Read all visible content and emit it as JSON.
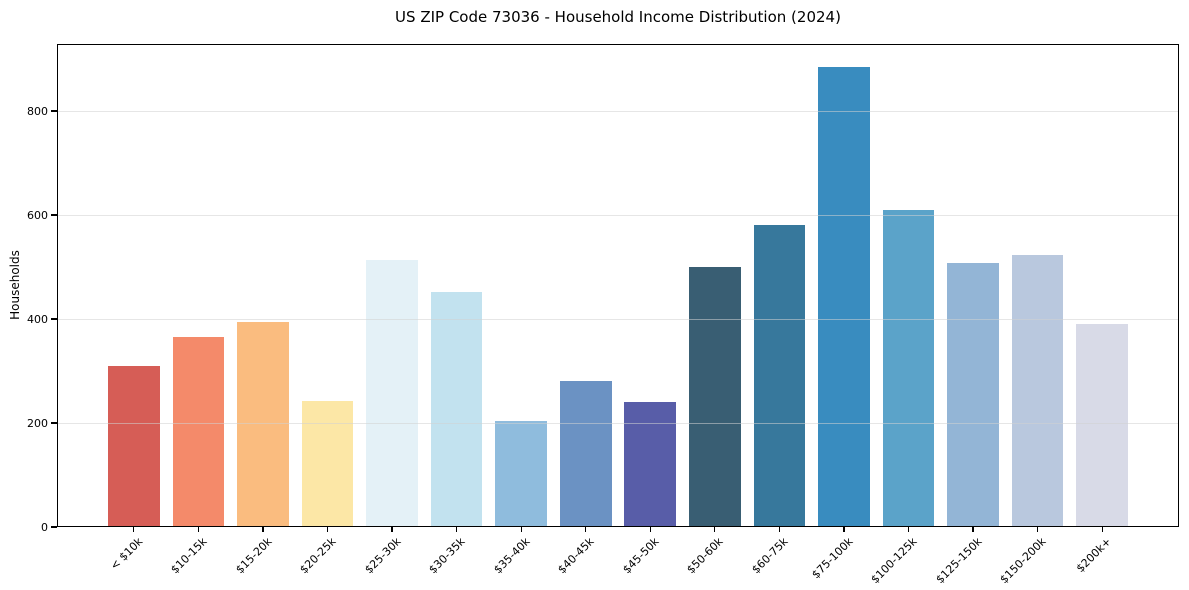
{
  "chart_data": {
    "type": "bar",
    "title": "US ZIP Code 73036 - Household Income Distribution (2024)",
    "xlabel": "",
    "ylabel": "Households",
    "categories": [
      "< $10k",
      "$10-15k",
      "$15-20k",
      "$20-25k",
      "$25-30k",
      "$30-35k",
      "$35-40k",
      "$40-45k",
      "$45-50k",
      "$50-60k",
      "$60-75k",
      "$75-100k",
      "$100-125k",
      "$125-150k",
      "$150-200k",
      "$200k+"
    ],
    "values": [
      310,
      365,
      395,
      242,
      513,
      452,
      204,
      280,
      240,
      500,
      580,
      885,
      610,
      508,
      523,
      390
    ],
    "bar_colors": [
      "#d65d56",
      "#f48a6a",
      "#fabc7f",
      "#fce7a6",
      "#e4f1f7",
      "#c2e2ef",
      "#8fbcdd",
      "#6b92c3",
      "#585da8",
      "#395e73",
      "#37789c",
      "#398cbf",
      "#5ba3c9",
      "#93b5d6",
      "#b9c8de",
      "#d8dae7"
    ],
    "yticks": [
      0,
      200,
      400,
      600,
      800
    ],
    "ylim": [
      0,
      929
    ],
    "xlim_units": [
      -1.19,
      16.19
    ],
    "bar_width_units": 0.8,
    "grid": "horizontal",
    "grid_color": "#e9e9e9",
    "axis_color": "#000000",
    "background": "#ffffff",
    "legend": "none",
    "x_tick_rotation_deg": 45
  }
}
